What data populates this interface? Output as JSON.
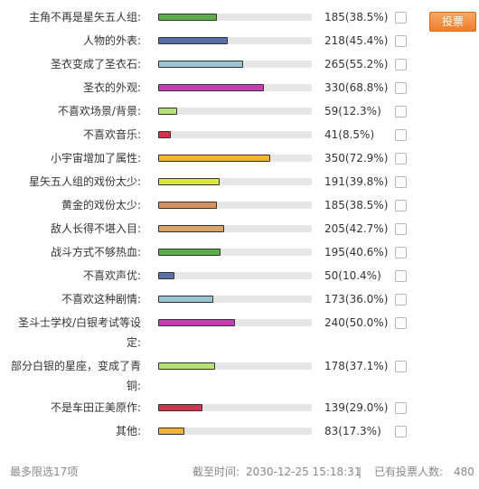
{
  "vote_button": "投票",
  "options": [
    {
      "label": "主角不再是星矢五人组:",
      "count": "185(38.5%)",
      "percent": 38.5,
      "color": "#5cae4a"
    },
    {
      "label": "人物的外表:",
      "count": "218(45.4%)",
      "percent": 45.4,
      "color": "#5a6fa6"
    },
    {
      "label": "圣衣变成了圣衣石:",
      "count": "265(55.2%)",
      "percent": 55.2,
      "color": "#9cc4d6"
    },
    {
      "label": "圣衣的外观:",
      "count": "330(68.8%)",
      "percent": 68.8,
      "color": "#c43fb2"
    },
    {
      "label": "不喜欢场景/背景:",
      "count": "59(12.3%)",
      "percent": 12.3,
      "color": "#b6e07a"
    },
    {
      "label": "不喜欢音乐:",
      "count": "41(8.5%)",
      "percent": 8.5,
      "color": "#d6324c"
    },
    {
      "label": "小宇宙增加了属性:",
      "count": "350(72.9%)",
      "percent": 72.9,
      "color": "#f5b430"
    },
    {
      "label": "星矢五人组的戏份太少:",
      "count": "191(39.8%)",
      "percent": 39.8,
      "color": "#d8e93a"
    },
    {
      "label": "黄金的戏份太少:",
      "count": "185(38.5%)",
      "percent": 38.5,
      "color": "#d7915e"
    },
    {
      "label": "敌人长得不堪入目:",
      "count": "205(42.7%)",
      "percent": 42.7,
      "color": "#d9a46a"
    },
    {
      "label": "战斗方式不够热血:",
      "count": "195(40.6%)",
      "percent": 40.6,
      "color": "#5cae4a"
    },
    {
      "label": "不喜欢声优:",
      "count": "50(10.4%)",
      "percent": 10.4,
      "color": "#5a6fa6"
    },
    {
      "label": "不喜欢这种剧情:",
      "count": "173(36.0%)",
      "percent": 36.0,
      "color": "#9cc4d6"
    },
    {
      "label": "圣斗士学校/白银考试等设定:",
      "count": "240(50.0%)",
      "percent": 50.0,
      "color": "#c43fb2"
    },
    {
      "label": "部分白银的星座，变成了青铜:",
      "count": "178(37.1%)",
      "percent": 37.1,
      "color": "#b6e07a"
    },
    {
      "label": "不是车田正美原作:",
      "count": "139(29.0%)",
      "percent": 29.0,
      "color": "#d6324c"
    },
    {
      "label": "其他:",
      "count": "83(17.3%)",
      "percent": 17.3,
      "color": "#f5b430"
    }
  ],
  "footer": {
    "limit_text": "最多限选17项",
    "deadline_label": "截至时间:",
    "deadline_value": "2030-12-25 15:18:31",
    "separator": "|",
    "voters_label": "已有投票人数:",
    "voters_value": "480"
  }
}
